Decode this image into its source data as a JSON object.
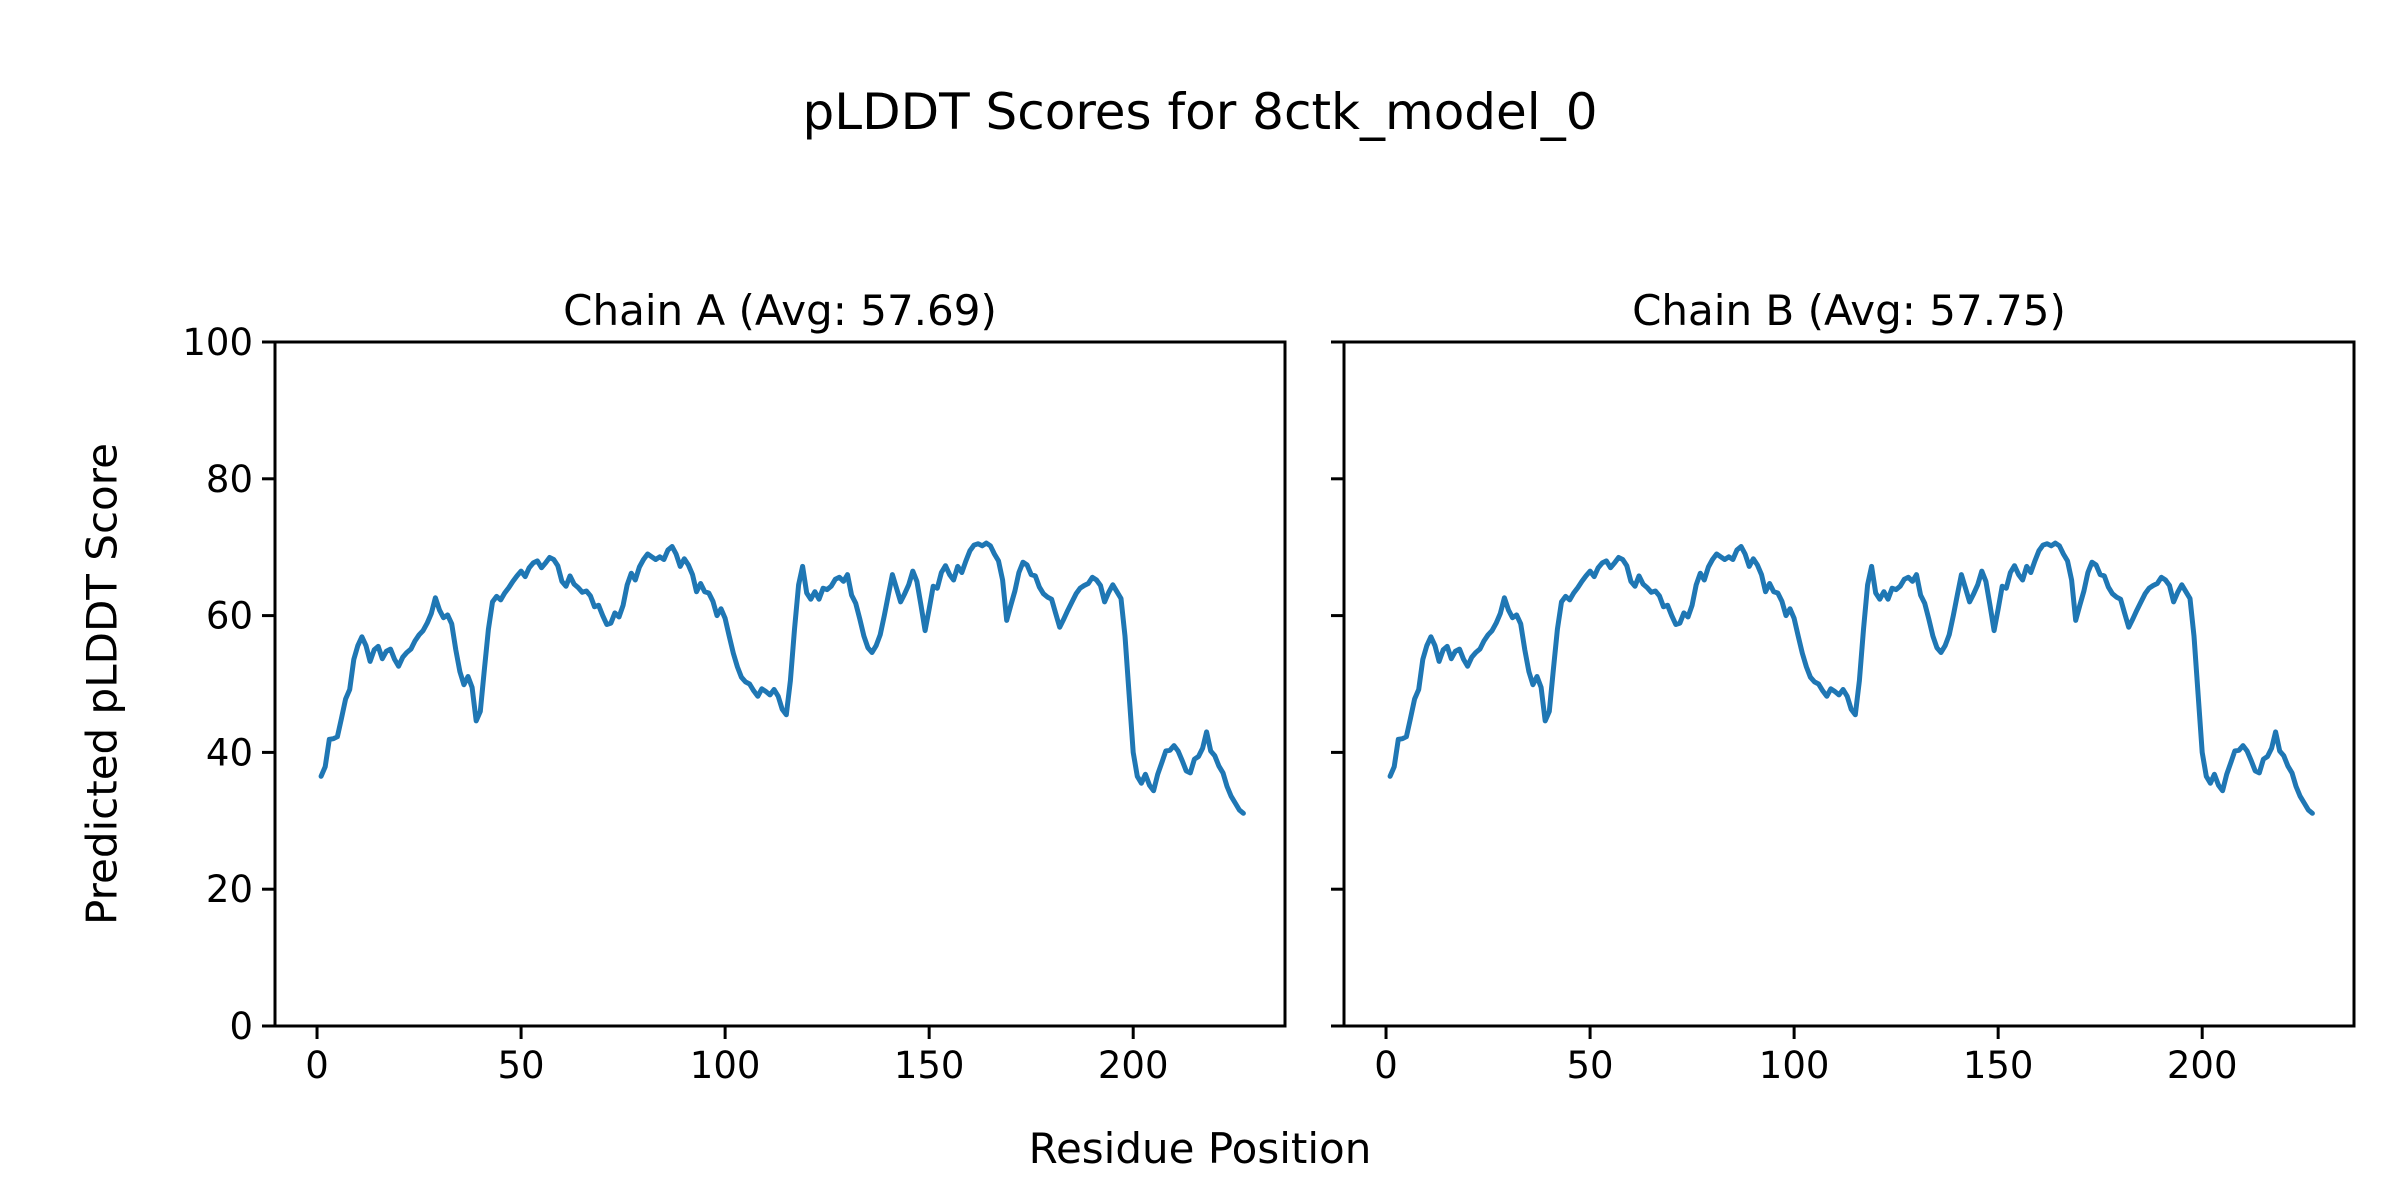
{
  "figure": {
    "suptitle": "pLDDT Scores for 8ctk_model_0",
    "xlabel": "Residue Position",
    "ylabel": "Predicted pLDDT Score",
    "line_color": "#1f77b4",
    "background_color": "#ffffff",
    "text_color": "#000000"
  },
  "chart_data": [
    {
      "type": "line",
      "title": "Chain A (Avg: 57.69)",
      "xlim": [
        -10.3,
        237.2
      ],
      "ylim": [
        0,
        100
      ],
      "xticks": [
        0,
        50,
        100,
        150,
        200
      ],
      "yticks": [
        0,
        20,
        40,
        60,
        80,
        100
      ],
      "show_ytick_labels": true,
      "grid": false,
      "series": [
        {
          "name": "Chain A",
          "x_start": 1,
          "x_step": 1,
          "values": [
            36.5,
            37.9,
            41.9,
            42,
            42.3,
            45,
            47.8,
            49.2,
            53.6,
            55.6,
            56.9,
            55.6,
            53.3,
            55,
            55.5,
            53.7,
            54.8,
            55.1,
            53.6,
            52.6,
            53.9,
            54.6,
            55.1,
            56.3,
            57.2,
            57.8,
            58.9,
            60.3,
            62.6,
            60.8,
            59.7,
            60.1,
            58.8,
            55,
            51.8,
            49.9,
            51.1,
            49.5,
            44.6,
            46,
            52,
            58,
            62,
            62.8,
            62.3,
            63.3,
            64.1,
            65,
            65.8,
            66.5,
            65.7,
            67,
            67.7,
            68,
            67,
            67.7,
            68.5,
            68.2,
            67.3,
            65,
            64.3,
            65.8,
            64.6,
            64.1,
            63.4,
            63.6,
            62.9,
            61.3,
            61.5,
            60,
            58.7,
            58.9,
            60.4,
            59.8,
            61.5,
            64.5,
            66.2,
            65.2,
            67.1,
            68.2,
            69,
            68.6,
            68.2,
            68.6,
            68.2,
            69.6,
            70.1,
            69,
            67.2,
            68.3,
            67.4,
            66,
            63.5,
            64.7,
            63.5,
            63.3,
            62.1,
            60,
            61,
            59.6,
            57,
            54.5,
            52.5,
            51,
            50.3,
            50,
            49,
            48.2,
            49.3,
            48.9,
            48.4,
            49.2,
            48.2,
            46.3,
            45.5,
            50.5,
            58,
            64.5,
            67.2,
            63.3,
            62.4,
            63.5,
            62.4,
            64,
            63.8,
            64.3,
            65.3,
            65.6,
            65,
            66,
            63,
            61.8,
            59.5,
            57,
            55.3,
            54.6,
            55.6,
            57.2,
            60,
            63,
            66,
            64,
            62,
            63.2,
            64.5,
            66.5,
            65,
            61.5,
            57.8,
            61,
            64.3,
            64,
            66.3,
            67.3,
            66,
            65.2,
            67.2,
            66.3,
            68,
            69.5,
            70.3,
            70.5,
            70.2,
            70.6,
            70.2,
            69,
            68,
            65.2,
            59.3,
            61.5,
            63.6,
            66.3,
            67.8,
            67.4,
            66,
            65.8,
            64.2,
            63.2,
            62.7,
            62.4,
            60.3,
            58.3,
            59.5,
            60.8,
            62,
            63.2,
            64,
            64.4,
            64.7,
            65.6,
            65.2,
            64.4,
            62,
            63.4,
            64.5,
            63.5,
            62.5,
            57,
            48.5,
            40,
            36.5,
            35.5,
            36.8,
            35.2,
            34.4,
            36.8,
            38.5,
            40.2,
            40.3,
            41,
            40.2,
            38.8,
            37.3,
            37,
            39,
            39.4,
            40.6,
            43,
            40.2,
            39.5,
            38,
            37,
            35,
            33.6,
            32.6,
            31.6,
            31.1
          ]
        }
      ]
    },
    {
      "type": "line",
      "title": "Chain B (Avg: 57.75)",
      "xlim": [
        -10.3,
        237.2
      ],
      "ylim": [
        0,
        100
      ],
      "xticks": [
        0,
        50,
        100,
        150,
        200
      ],
      "yticks": [
        0,
        20,
        40,
        60,
        80,
        100
      ],
      "show_ytick_labels": false,
      "grid": false,
      "series": [
        {
          "name": "Chain B",
          "x_start": 1,
          "x_step": 1,
          "values": [
            36.5,
            37.9,
            41.9,
            42,
            42.3,
            45,
            47.8,
            49.2,
            53.6,
            55.6,
            56.9,
            55.6,
            53.3,
            55,
            55.5,
            53.7,
            54.8,
            55.1,
            53.6,
            52.6,
            53.9,
            54.6,
            55.1,
            56.3,
            57.2,
            57.8,
            58.9,
            60.3,
            62.6,
            60.8,
            59.7,
            60.1,
            58.8,
            55,
            51.8,
            49.9,
            51.1,
            49.5,
            44.6,
            46,
            52,
            58,
            62,
            62.8,
            62.3,
            63.3,
            64.1,
            65,
            65.8,
            66.5,
            65.7,
            67,
            67.7,
            68,
            67,
            67.7,
            68.5,
            68.2,
            67.3,
            65,
            64.3,
            65.8,
            64.6,
            64.1,
            63.4,
            63.6,
            62.9,
            61.3,
            61.5,
            60,
            58.7,
            58.9,
            60.4,
            59.8,
            61.5,
            64.5,
            66.2,
            65.2,
            67.1,
            68.2,
            69,
            68.6,
            68.2,
            68.6,
            68.2,
            69.6,
            70.1,
            69,
            67.2,
            68.3,
            67.4,
            66,
            63.5,
            64.7,
            63.5,
            63.3,
            62.1,
            60,
            61,
            59.6,
            57,
            54.5,
            52.5,
            51,
            50.3,
            50,
            49,
            48.2,
            49.3,
            48.9,
            48.4,
            49.2,
            48.2,
            46.3,
            45.5,
            50.5,
            58,
            64.5,
            67.2,
            63.3,
            62.4,
            63.5,
            62.4,
            64,
            63.8,
            64.3,
            65.3,
            65.6,
            65,
            66,
            63,
            61.8,
            59.5,
            57,
            55.3,
            54.6,
            55.6,
            57.2,
            60,
            63,
            66,
            64,
            62,
            63.2,
            64.5,
            66.5,
            65,
            61.5,
            57.8,
            61,
            64.3,
            64,
            66.3,
            67.3,
            66,
            65.2,
            67.2,
            66.3,
            68,
            69.5,
            70.3,
            70.5,
            70.2,
            70.6,
            70.2,
            69,
            68,
            65.2,
            59.3,
            61.5,
            63.6,
            66.3,
            67.8,
            67.4,
            66,
            65.8,
            64.2,
            63.2,
            62.7,
            62.4,
            60.3,
            58.3,
            59.5,
            60.8,
            62,
            63.2,
            64,
            64.4,
            64.7,
            65.6,
            65.2,
            64.4,
            62,
            63.4,
            64.5,
            63.5,
            62.5,
            57,
            48.5,
            40,
            36.5,
            35.5,
            36.8,
            35.2,
            34.4,
            36.8,
            38.5,
            40.2,
            40.3,
            41,
            40.2,
            38.8,
            37.3,
            37,
            39,
            39.4,
            40.6,
            43,
            40.2,
            39.5,
            38,
            37,
            35,
            33.6,
            32.6,
            31.6,
            31.1
          ]
        }
      ]
    }
  ]
}
